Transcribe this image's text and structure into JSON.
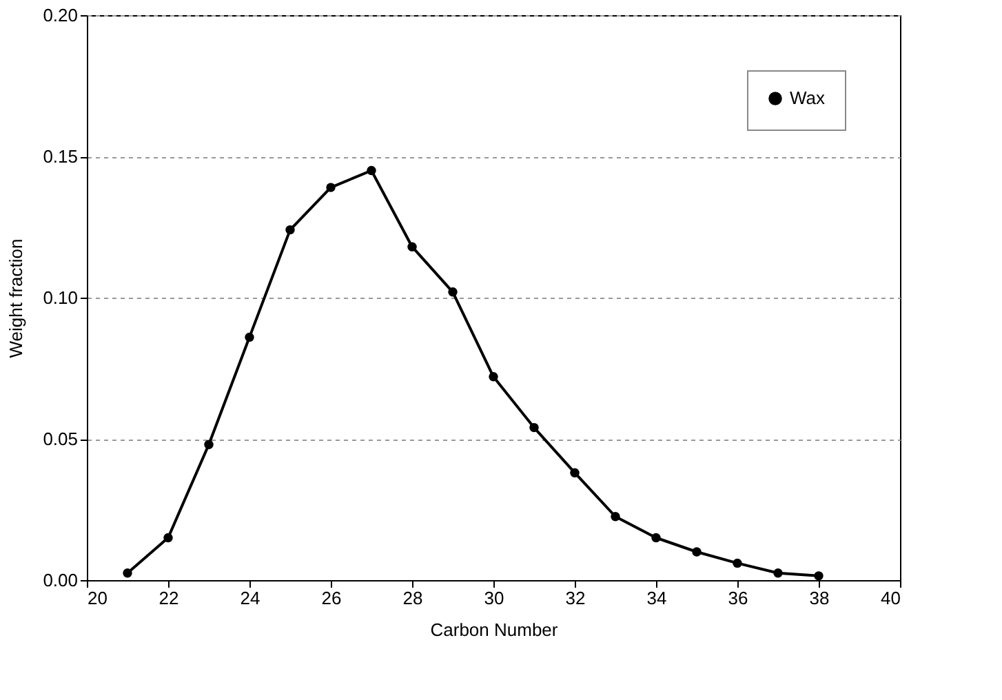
{
  "chart_data": {
    "type": "line",
    "xlabel": "Carbon Number",
    "ylabel": "Weight fraction",
    "x": [
      21,
      22,
      23,
      24,
      25,
      26,
      27,
      28,
      29,
      30,
      31,
      32,
      33,
      34,
      35,
      36,
      37,
      38
    ],
    "series": [
      {
        "name": "Wax",
        "color": "#000000",
        "values": [
          0.0025,
          0.015,
          0.048,
          0.086,
          0.124,
          0.139,
          0.145,
          0.118,
          0.102,
          0.072,
          0.054,
          0.038,
          0.0225,
          0.015,
          0.01,
          0.006,
          0.0025,
          0.0015
        ]
      }
    ],
    "xlim": [
      20,
      40
    ],
    "xticks": [
      20,
      22,
      24,
      26,
      28,
      30,
      32,
      34,
      36,
      38,
      40
    ],
    "ylim": [
      0,
      0.2
    ],
    "yticks": [
      {
        "value": 0,
        "label": "0.00"
      },
      {
        "value": 0.05,
        "label": "0.05"
      },
      {
        "value": 0.1,
        "label": "0.10"
      },
      {
        "value": 0.15,
        "label": "0.15"
      },
      {
        "value": 0.2,
        "label": "0.20"
      }
    ],
    "grid": "y",
    "legend": "top right",
    "marker": "circle",
    "line_style": "solid"
  }
}
